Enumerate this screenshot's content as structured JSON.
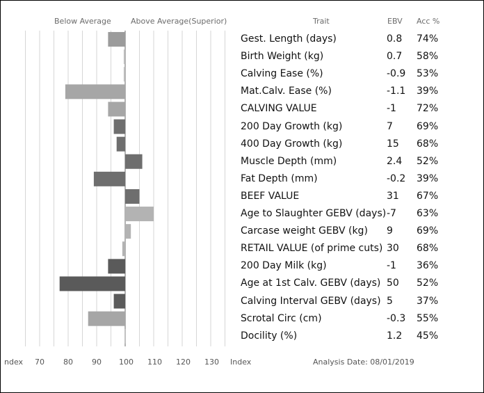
{
  "header": {
    "below_label": "Below Average",
    "above_label": "Above Average(Superior)",
    "trait_label": "Trait",
    "ebv_label": "EBV",
    "acc_label": "Acc %"
  },
  "footer": {
    "index_left": "ndex",
    "index_right": "Index",
    "analysis_date": "Analysis Date: 08/01/2019"
  },
  "chart_data": {
    "type": "bar",
    "orientation": "horizontal",
    "xlim": [
      65,
      135
    ],
    "baseline": 100,
    "grid": true,
    "x_ticks": [
      "70",
      "80",
      "90",
      "100",
      "110",
      "120",
      "130"
    ],
    "rows": [
      {
        "trait": "Gest. Length (days)",
        "ebv": "0.8",
        "acc": "74%",
        "index": 94,
        "shade": "#9b9b9b"
      },
      {
        "trait": "Birth Weight (kg)",
        "ebv": "0.7",
        "acc": "58%",
        "index": 99.5,
        "shade": "#bdbdbd"
      },
      {
        "trait": "Calving Ease (%)",
        "ebv": "-0.9",
        "acc": "53%",
        "index": 99.5,
        "shade": "#bdbdbd"
      },
      {
        "trait": "Mat.Calv. Ease (%)",
        "ebv": "-1.1",
        "acc": "39%",
        "index": 79,
        "shade": "#a6a6a6"
      },
      {
        "trait": "CALVING VALUE",
        "ebv": "-1",
        "acc": "72%",
        "index": 94,
        "shade": "#a6a6a6"
      },
      {
        "trait": "200 Day Growth (kg)",
        "ebv": "7",
        "acc": "69%",
        "index": 96,
        "shade": "#6e6e6e"
      },
      {
        "trait": "400 Day Growth (kg)",
        "ebv": "15",
        "acc": "68%",
        "index": 97,
        "shade": "#6e6e6e"
      },
      {
        "trait": "Muscle Depth (mm)",
        "ebv": "2.4",
        "acc": "52%",
        "index": 106,
        "shade": "#6e6e6e"
      },
      {
        "trait": "Fat Depth (mm)",
        "ebv": "-0.2",
        "acc": "39%",
        "index": 89,
        "shade": "#6e6e6e"
      },
      {
        "trait": "BEEF VALUE",
        "ebv": "31",
        "acc": "67%",
        "index": 105,
        "shade": "#6e6e6e"
      },
      {
        "trait": "Age to Slaughter GEBV (days)",
        "ebv": "-7",
        "acc": "63%",
        "index": 110,
        "shade": "#b3b3b3"
      },
      {
        "trait": "Carcase weight GEBV (kg)",
        "ebv": "9",
        "acc": "69%",
        "index": 102,
        "shade": "#b3b3b3"
      },
      {
        "trait": "RETAIL VALUE (of prime cuts)",
        "ebv": "30",
        "acc": "68%",
        "index": 99,
        "shade": "#b3b3b3"
      },
      {
        "trait": "200 Day Milk (kg)",
        "ebv": "-1",
        "acc": "36%",
        "index": 94,
        "shade": "#5a5a5a"
      },
      {
        "trait": "Age at 1st Calv. GEBV (days)",
        "ebv": "50",
        "acc": "52%",
        "index": 77,
        "shade": "#5a5a5a"
      },
      {
        "trait": "Calving Interval GEBV (days)",
        "ebv": "5",
        "acc": "37%",
        "index": 96,
        "shade": "#5a5a5a"
      },
      {
        "trait": "Scrotal Circ (cm)",
        "ebv": "-0.3",
        "acc": "55%",
        "index": 87,
        "shade": "#a6a6a6"
      },
      {
        "trait": "Docility (%)",
        "ebv": "1.2",
        "acc": "45%",
        "index": 100,
        "shade": "#bdbdbd"
      }
    ]
  }
}
